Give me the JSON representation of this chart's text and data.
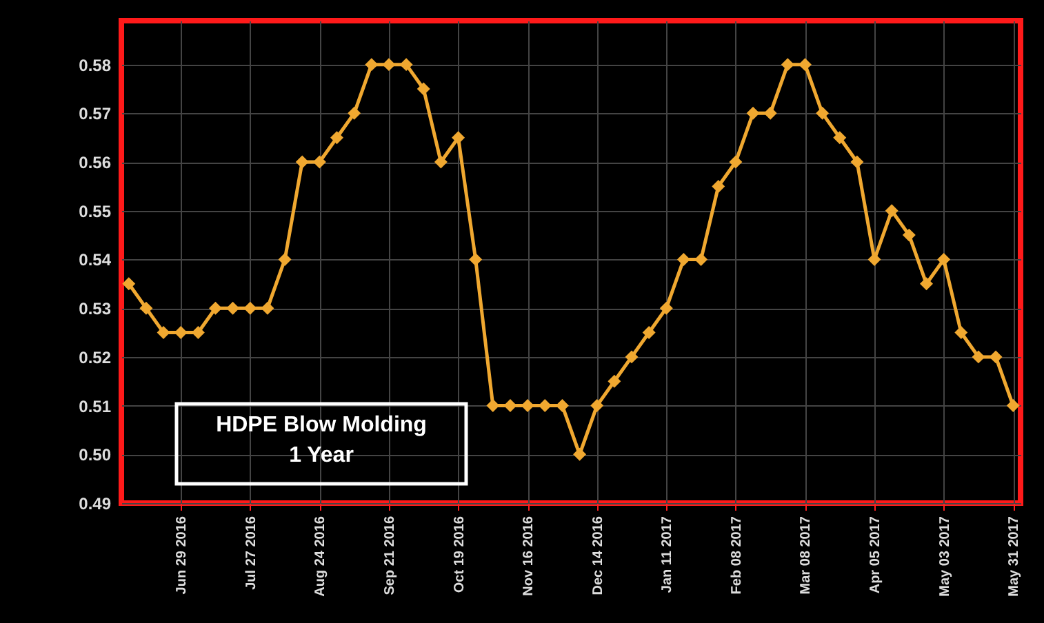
{
  "chart_data": {
    "type": "line",
    "x": [
      "2016-06-08",
      "2016-06-15",
      "2016-06-22",
      "2016-06-29",
      "2016-07-06",
      "2016-07-13",
      "2016-07-20",
      "2016-07-27",
      "2016-08-03",
      "2016-08-10",
      "2016-08-17",
      "2016-08-24",
      "2016-08-31",
      "2016-09-07",
      "2016-09-14",
      "2016-09-21",
      "2016-09-28",
      "2016-10-05",
      "2016-10-12",
      "2016-10-19",
      "2016-10-26",
      "2016-11-02",
      "2016-11-09",
      "2016-11-16",
      "2016-11-23",
      "2016-11-30",
      "2016-12-07",
      "2016-12-14",
      "2016-12-21",
      "2016-12-28",
      "2017-01-04",
      "2017-01-11",
      "2017-01-18",
      "2017-01-25",
      "2017-02-01",
      "2017-02-08",
      "2017-02-15",
      "2017-02-22",
      "2017-03-01",
      "2017-03-08",
      "2017-03-15",
      "2017-03-22",
      "2017-03-29",
      "2017-04-05",
      "2017-04-12",
      "2017-04-19",
      "2017-04-26",
      "2017-05-03",
      "2017-05-10",
      "2017-05-17",
      "2017-05-24",
      "2017-05-31"
    ],
    "series": [
      {
        "color": "#f0a830",
        "values": [
          0.535,
          0.53,
          0.525,
          0.525,
          0.525,
          0.53,
          0.53,
          0.53,
          0.53,
          0.54,
          0.56,
          0.56,
          0.565,
          0.57,
          0.58,
          0.58,
          0.58,
          0.575,
          0.56,
          0.565,
          0.54,
          0.51,
          0.51,
          0.51,
          0.51,
          0.51,
          0.5,
          0.51,
          0.515,
          0.52,
          0.525,
          0.53,
          0.54,
          0.54,
          0.555,
          0.56,
          0.57,
          0.57,
          0.58,
          0.58,
          0.57,
          0.565,
          0.56,
          0.54,
          0.55,
          0.545,
          0.535,
          0.54,
          0.525,
          0.52,
          0.52,
          0.51
        ]
      }
    ],
    "xlim": [
      "2016-06-05",
      "2017-06-03"
    ],
    "xticks": [
      {
        "value": "2016-06-29",
        "label": "Jun 29 2016"
      },
      {
        "value": "2016-07-27",
        "label": "Jul 27 2016"
      },
      {
        "value": "2016-08-24",
        "label": "Aug 24 2016"
      },
      {
        "value": "2016-09-21",
        "label": "Sep 21 2016"
      },
      {
        "value": "2016-10-19",
        "label": "Oct 19 2016"
      },
      {
        "value": "2016-11-16",
        "label": "Nov 16 2016"
      },
      {
        "value": "2016-12-14",
        "label": "Dec 14 2016"
      },
      {
        "value": "2017-01-11",
        "label": "Jan 11 2017"
      },
      {
        "value": "2017-02-08",
        "label": "Feb 08 2017"
      },
      {
        "value": "2017-03-08",
        "label": "Mar 08 2017"
      },
      {
        "value": "2017-04-05",
        "label": "Apr 05 2017"
      },
      {
        "value": "2017-05-03",
        "label": "May 03 2017"
      },
      {
        "value": "2017-05-31",
        "label": "May 31 2017"
      }
    ],
    "ylim": [
      0.49,
      0.589
    ],
    "yticks": [
      {
        "value": 0.49,
        "label": "0.49"
      },
      {
        "value": 0.5,
        "label": "0.50"
      },
      {
        "value": 0.51,
        "label": "0.51"
      },
      {
        "value": 0.52,
        "label": "0.52"
      },
      {
        "value": 0.53,
        "label": "0.53"
      },
      {
        "value": 0.54,
        "label": "0.54"
      },
      {
        "value": 0.55,
        "label": "0.55"
      },
      {
        "value": 0.56,
        "label": "0.56"
      },
      {
        "value": 0.57,
        "label": "0.57"
      },
      {
        "value": 0.58,
        "label": "0.58"
      }
    ],
    "grid": true,
    "marker": "diamond",
    "line_style": "solid",
    "annotations": [
      "HDPE Blow Molding\n1 Year"
    ]
  }
}
